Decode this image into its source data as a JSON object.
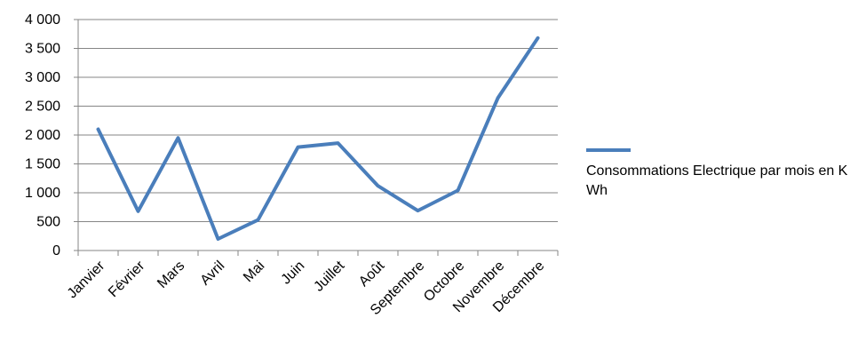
{
  "chart_data": {
    "type": "line",
    "categories": [
      "Janvier",
      "Février",
      "Mars",
      "Avril",
      "Mai",
      "Juin",
      "Juillet",
      "Août",
      "Septembre",
      "Octobre",
      "Novembre",
      "Décembre"
    ],
    "series": [
      {
        "name": "Consommations Electrique par mois en K Wh",
        "values": [
          2100,
          680,
          1950,
          200,
          530,
          1790,
          1860,
          1120,
          690,
          1040,
          2640,
          3680
        ],
        "color": "#4a7ebb"
      }
    ],
    "y_ticks": [
      "0",
      "500",
      "1 000",
      "1 500",
      "2 000",
      "2 500",
      "3 000",
      "3 500",
      "4 000"
    ],
    "ylim": [
      0,
      4000
    ],
    "y_step": 500,
    "grid": true,
    "legend_position": "right",
    "title": "",
    "xlabel": "",
    "ylabel": ""
  }
}
